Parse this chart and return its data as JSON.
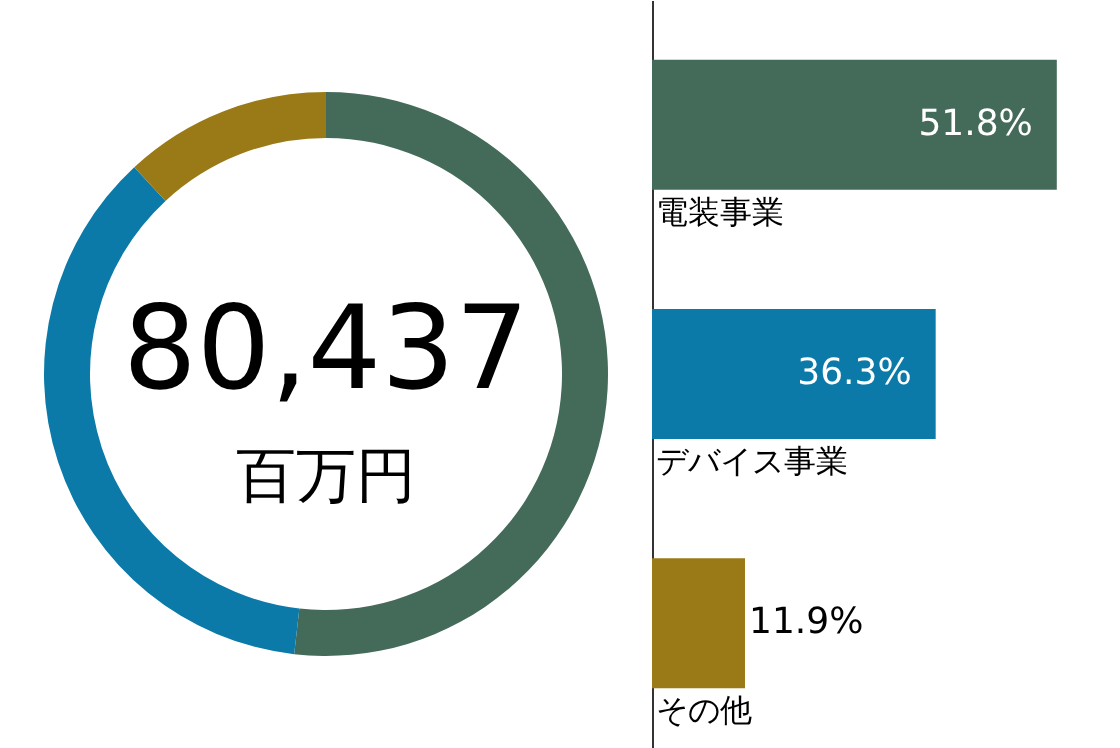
{
  "chart_data": [
    {
      "type": "donut",
      "categories": [
        null,
        null,
        null
      ],
      "values": [
        51.8,
        36.3,
        11.9
      ],
      "colors": [
        "#446b5a",
        "#0b7aa8",
        "#9a7a17"
      ],
      "annotations": [
        "80,437",
        "百万円"
      ]
    },
    {
      "type": "bar",
      "orientation": "horizontal",
      "categories": [
        "電装事業",
        "デバイス事業",
        "その他"
      ],
      "values": [
        51.8,
        36.3,
        11.9
      ],
      "colors": [
        "#446b5a",
        "#0b7aa8",
        "#9a7a17"
      ],
      "value_labels": [
        "51.8%",
        "36.3%",
        "11.9%"
      ]
    }
  ]
}
